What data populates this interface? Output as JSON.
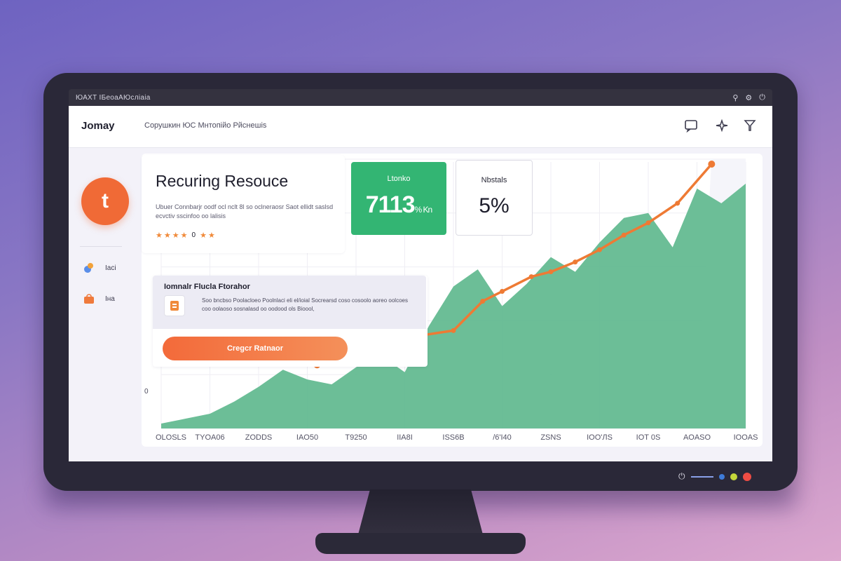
{
  "window": {
    "title": "ЮАХТ ІБеоаАЮсліаіа",
    "icons": [
      "search-icon",
      "gear-icon",
      "power-icon"
    ]
  },
  "topbar": {
    "logo": "Jomay",
    "nav_text": "Сорушкин ЮС Мнтопійо Рйснешіs",
    "icons": [
      "chat-icon",
      "sparkle-icon",
      "filter-icon"
    ]
  },
  "sidebar": {
    "avatar_letter": "t",
    "items": [
      {
        "icon": "palette-icon",
        "label": "Іасі"
      },
      {
        "icon": "bag-icon",
        "label": "Іна"
      }
    ]
  },
  "hero": {
    "title": "Recuring Resouce",
    "description": "Ubuer Connbarjr oodf ocl nclt 8l so oclneraosr Saot ellidt saslsd ecvctiv sscinfoo oo lalisis",
    "rating": "0"
  },
  "stat_green": {
    "label": "Ltonko",
    "value": "7113",
    "suffix": "% Kn"
  },
  "stat_white": {
    "label": "Nbstals",
    "value": "5%"
  },
  "feature": {
    "title": "Iomnalr  Flucla Ftorahor",
    "description": "Soo bncbso Poolacloeo Poolnlaci eli el/ioial Socrearsd coso cosoolo aoreo oolcoes coo oolaoso sosnalasd oo oodood ols Bioool,",
    "button_label": "Cregcr Ratnaor"
  },
  "chart": {
    "y_axis_marker": "0",
    "tick_labels": [
      "OLOSLS",
      "TYOA06",
      "ZODDS",
      "IAO50",
      "T9250",
      "IIA8I",
      "ISS6B",
      "/6'I40",
      "ZSNS",
      "IOO'ЛS",
      "IOT 0S",
      "AOASO",
      "IOOAS"
    ]
  },
  "chart_data": {
    "type": "area",
    "categories": [
      "OLOSLS",
      "TYOA06",
      "ZODDS",
      "IAO50",
      "T9250",
      "IIA8I",
      "ISS6B",
      "/6'I40",
      "ZSNS",
      "IOO'ЛS",
      "IOT 0S",
      "AOASO",
      "IOOAS"
    ],
    "series": [
      {
        "type": "area",
        "color": "#5fb88e",
        "points": [
          [
            0,
            2
          ],
          [
            0.5,
            4
          ],
          [
            1,
            6
          ],
          [
            1.5,
            11
          ],
          [
            2,
            17
          ],
          [
            2.5,
            24
          ],
          [
            3,
            20
          ],
          [
            3.5,
            18
          ],
          [
            4,
            25
          ],
          [
            4.5,
            30
          ],
          [
            5,
            23
          ],
          [
            5.5,
            42
          ],
          [
            6,
            58
          ],
          [
            6.5,
            65
          ],
          [
            7,
            50
          ],
          [
            7.5,
            59
          ],
          [
            8,
            70
          ],
          [
            8.5,
            64
          ],
          [
            9,
            76
          ],
          [
            9.5,
            86
          ],
          [
            10,
            88
          ],
          [
            10.5,
            74
          ],
          [
            11,
            98
          ],
          [
            11.5,
            92
          ],
          [
            12,
            100
          ]
        ]
      },
      {
        "type": "line",
        "color": "#ee7a34",
        "points": [
          [
            3.2,
            26
          ],
          [
            4,
            36
          ],
          [
            5,
            37
          ],
          [
            6,
            40
          ],
          [
            6.6,
            52
          ],
          [
            7,
            56
          ],
          [
            7.6,
            62
          ],
          [
            8,
            64
          ],
          [
            8.5,
            68
          ],
          [
            9,
            73
          ],
          [
            9.5,
            79
          ],
          [
            10,
            84
          ],
          [
            10.6,
            92
          ],
          [
            11.3,
            108
          ]
        ],
        "marked": [
          [
            3.2,
            26
          ],
          [
            4,
            36
          ],
          [
            5,
            37
          ],
          [
            6,
            40
          ],
          [
            6.6,
            52
          ],
          [
            7,
            56
          ],
          [
            7.6,
            62
          ],
          [
            8,
            64
          ],
          [
            8.5,
            68
          ],
          [
            9,
            73
          ],
          [
            9.5,
            79
          ],
          [
            10,
            84
          ],
          [
            10.6,
            92
          ],
          [
            11.3,
            108
          ]
        ]
      }
    ]
  },
  "colors": {
    "accent_orange": "#f06a36",
    "accent_green": "#33b573",
    "chart_area": "#5fb88e",
    "chart_line": "#ee7a34"
  },
  "monitor_controls": [
    "power-icon",
    "blue-dot",
    "yellow-dot",
    "red-dot"
  ]
}
